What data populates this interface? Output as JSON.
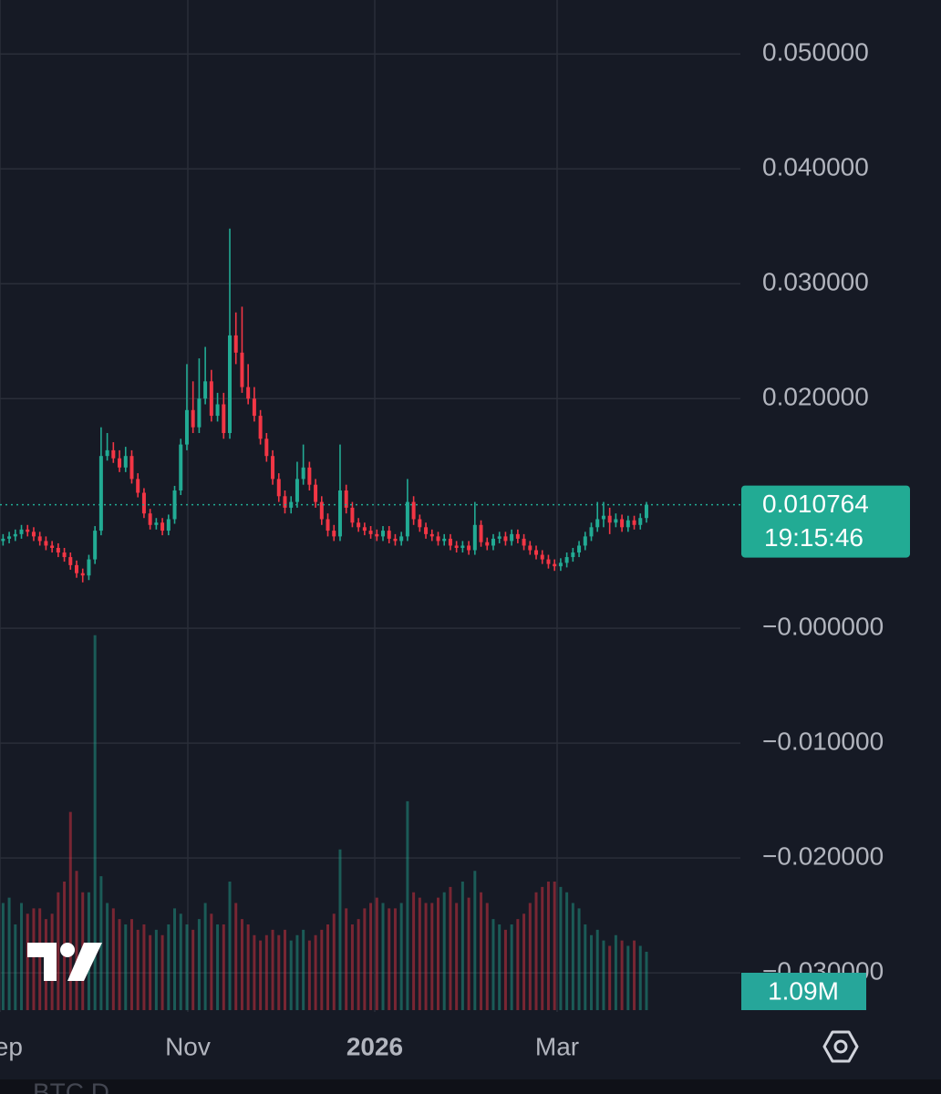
{
  "chart_data": {
    "type": "candlestick",
    "categories": [
      null,
      null,
      null,
      null,
      null,
      null,
      null,
      null,
      null,
      null,
      null,
      null,
      null,
      null,
      null,
      null,
      null,
      null,
      null,
      null,
      null,
      null,
      null,
      null,
      null,
      null,
      null,
      null,
      null,
      null,
      null,
      null,
      null,
      null,
      null,
      null,
      null,
      null,
      null,
      null,
      null,
      null,
      null,
      null,
      null,
      null,
      null,
      null,
      null,
      null,
      null,
      null,
      null,
      null,
      null,
      null,
      null,
      null,
      null,
      null,
      null,
      null,
      null,
      null,
      null,
      null,
      null,
      null,
      null,
      null,
      null,
      null,
      null,
      null,
      null,
      null,
      null,
      null,
      null,
      null,
      null,
      null,
      null,
      null,
      null,
      null,
      null,
      null,
      null,
      null,
      null,
      null,
      null,
      null,
      null,
      null,
      null,
      null,
      null,
      null,
      null,
      null,
      null,
      null,
      null,
      null
    ],
    "open": [
      0.0076,
      0.0078,
      0.008,
      0.0082,
      0.0086,
      0.0084,
      0.008,
      0.0076,
      0.0072,
      0.007,
      0.0066,
      0.0062,
      0.0055,
      0.0048,
      0.0046,
      0.006,
      0.0085,
      0.015,
      0.0155,
      0.0148,
      0.014,
      0.015,
      0.013,
      0.0118,
      0.01,
      0.009,
      0.0092,
      0.0085,
      0.0095,
      0.012,
      0.016,
      0.019,
      0.0175,
      0.02,
      0.0215,
      0.0185,
      0.0195,
      0.017,
      0.0255,
      0.024,
      0.021,
      0.02,
      0.0185,
      0.0165,
      0.015,
      0.013,
      0.0115,
      0.0105,
      0.011,
      0.013,
      0.014,
      0.0125,
      0.011,
      0.0095,
      0.0085,
      0.008,
      0.012,
      0.0105,
      0.0092,
      0.0088,
      0.0085,
      0.0082,
      0.008,
      0.0085,
      0.0078,
      0.0076,
      0.008,
      0.011,
      0.0095,
      0.0088,
      0.0082,
      0.008,
      0.0076,
      0.0078,
      0.0072,
      0.007,
      0.0072,
      0.0068,
      0.009,
      0.0075,
      0.0072,
      0.0078,
      0.008,
      0.0076,
      0.0082,
      0.0078,
      0.0072,
      0.0068,
      0.0064,
      0.006,
      0.0056,
      0.0054,
      0.0057,
      0.0062,
      0.0066,
      0.0072,
      0.008,
      0.0088,
      0.0095,
      0.0098,
      0.0092,
      0.0095,
      0.0088,
      0.0094,
      0.009,
      0.0096
    ],
    "high": [
      0.0082,
      0.0084,
      0.0086,
      0.009,
      0.009,
      0.0088,
      0.0084,
      0.008,
      0.0076,
      0.0074,
      0.007,
      0.0066,
      0.0059,
      0.0052,
      0.0064,
      0.0089,
      0.0175,
      0.017,
      0.0162,
      0.0155,
      0.0158,
      0.0155,
      0.0135,
      0.0122,
      0.0104,
      0.0096,
      0.0096,
      0.0099,
      0.0124,
      0.0165,
      0.023,
      0.0215,
      0.0235,
      0.0245,
      0.0225,
      0.0205,
      0.0205,
      0.0348,
      0.0275,
      0.028,
      0.023,
      0.021,
      0.019,
      0.017,
      0.0155,
      0.0135,
      0.012,
      0.0115,
      0.0145,
      0.016,
      0.0145,
      0.013,
      0.0115,
      0.01,
      0.009,
      0.016,
      0.0125,
      0.011,
      0.0096,
      0.0092,
      0.0089,
      0.0086,
      0.0089,
      0.0089,
      0.0082,
      0.0084,
      0.013,
      0.0115,
      0.0099,
      0.0092,
      0.0086,
      0.0084,
      0.0082,
      0.0082,
      0.0076,
      0.0076,
      0.0076,
      0.011,
      0.0094,
      0.0079,
      0.0082,
      0.0084,
      0.0084,
      0.0086,
      0.0086,
      0.0082,
      0.0076,
      0.0072,
      0.0068,
      0.0064,
      0.006,
      0.0061,
      0.0066,
      0.007,
      0.0076,
      0.0084,
      0.0092,
      0.011,
      0.011,
      0.0105,
      0.01,
      0.0099,
      0.0098,
      0.0098,
      0.01,
      0.011
    ],
    "low": [
      0.0072,
      0.0074,
      0.0076,
      0.0078,
      0.008,
      0.0076,
      0.0072,
      0.0068,
      0.0066,
      0.0062,
      0.0058,
      0.0051,
      0.0044,
      0.004,
      0.0042,
      0.0056,
      0.0081,
      0.0146,
      0.0144,
      0.0136,
      0.0136,
      0.0126,
      0.0114,
      0.0096,
      0.0086,
      0.0086,
      0.0081,
      0.0081,
      0.0091,
      0.0116,
      0.0155,
      0.017,
      0.017,
      0.0195,
      0.018,
      0.018,
      0.0165,
      0.0165,
      0.023,
      0.0205,
      0.0195,
      0.018,
      0.016,
      0.0145,
      0.0125,
      0.011,
      0.01,
      0.01,
      0.0105,
      0.0125,
      0.012,
      0.0105,
      0.009,
      0.008,
      0.0076,
      0.0076,
      0.01,
      0.0088,
      0.0084,
      0.0081,
      0.0078,
      0.0076,
      0.0076,
      0.0074,
      0.0072,
      0.0072,
      0.0076,
      0.009,
      0.0084,
      0.0078,
      0.0076,
      0.0072,
      0.0072,
      0.0068,
      0.0066,
      0.0066,
      0.0064,
      0.0064,
      0.0071,
      0.0068,
      0.0068,
      0.0074,
      0.0072,
      0.0072,
      0.0074,
      0.0068,
      0.0064,
      0.006,
      0.0056,
      0.0052,
      0.005,
      0.005,
      0.0053,
      0.0058,
      0.0062,
      0.0068,
      0.0076,
      0.0084,
      0.0088,
      0.0082,
      0.0088,
      0.0084,
      0.0084,
      0.0086,
      0.0086,
      0.0092
    ],
    "close": [
      0.0078,
      0.008,
      0.0082,
      0.0086,
      0.0084,
      0.008,
      0.0076,
      0.0072,
      0.007,
      0.0066,
      0.0062,
      0.0055,
      0.0048,
      0.0046,
      0.006,
      0.0085,
      0.015,
      0.0155,
      0.0148,
      0.014,
      0.015,
      0.013,
      0.0118,
      0.01,
      0.009,
      0.0092,
      0.0085,
      0.0095,
      0.012,
      0.016,
      0.019,
      0.0175,
      0.02,
      0.0215,
      0.0185,
      0.0195,
      0.017,
      0.0255,
      0.024,
      0.021,
      0.02,
      0.0185,
      0.0165,
      0.015,
      0.013,
      0.0115,
      0.0105,
      0.011,
      0.013,
      0.014,
      0.0125,
      0.011,
      0.0095,
      0.0085,
      0.008,
      0.012,
      0.0105,
      0.0092,
      0.0088,
      0.0085,
      0.0082,
      0.008,
      0.0085,
      0.0078,
      0.0076,
      0.008,
      0.011,
      0.0095,
      0.0088,
      0.0082,
      0.008,
      0.0076,
      0.0078,
      0.0072,
      0.007,
      0.0072,
      0.0068,
      0.009,
      0.0075,
      0.0072,
      0.0078,
      0.008,
      0.0076,
      0.0082,
      0.0078,
      0.0072,
      0.0068,
      0.0064,
      0.006,
      0.0056,
      0.0054,
      0.0057,
      0.0062,
      0.0066,
      0.0072,
      0.008,
      0.0088,
      0.0095,
      0.0098,
      0.0092,
      0.0095,
      0.0088,
      0.0094,
      0.009,
      0.0096,
      0.010764
    ],
    "volume": [
      2.0,
      2.1,
      1.6,
      2.0,
      1.8,
      1.9,
      1.9,
      1.7,
      1.8,
      2.2,
      2.4,
      3.7,
      2.6,
      2.2,
      2.2,
      7.0,
      2.5,
      2.0,
      1.9,
      1.7,
      1.6,
      1.7,
      1.5,
      1.6,
      1.4,
      1.5,
      1.4,
      1.6,
      1.9,
      1.8,
      1.6,
      1.5,
      1.7,
      2.0,
      1.8,
      1.6,
      1.6,
      2.4,
      2.0,
      1.7,
      1.6,
      1.4,
      1.3,
      1.4,
      1.5,
      1.4,
      1.5,
      1.3,
      1.4,
      1.5,
      1.3,
      1.4,
      1.5,
      1.6,
      1.8,
      3.0,
      1.9,
      1.6,
      1.7,
      1.9,
      2.0,
      2.1,
      2.0,
      1.9,
      1.9,
      2.0,
      3.9,
      2.2,
      2.1,
      2.0,
      2.0,
      2.1,
      2.2,
      2.3,
      2.0,
      2.4,
      2.1,
      2.6,
      2.2,
      2.0,
      1.7,
      1.6,
      1.5,
      1.6,
      1.7,
      1.8,
      2.0,
      2.2,
      2.3,
      2.4,
      2.4,
      2.3,
      2.2,
      2.0,
      1.9,
      1.6,
      1.4,
      1.5,
      1.3,
      1.2,
      1.4,
      1.3,
      1.2,
      1.3,
      1.2,
      1.09
    ],
    "volume_label": "1.09M",
    "volume_ylim": [
      0,
      8
    ],
    "countdown": "19:15:46",
    "symbol": "BTC.D",
    "up_color": "#22ab94",
    "down_color": "#f23645",
    "xlim": [
      -0.5,
      120.33
    ],
    "xticks": [
      {
        "value": -0.5,
        "label": "Sep"
      },
      {
        "value": 30.15,
        "label": "Nov"
      },
      {
        "value": 60.66,
        "label": "2026"
      },
      {
        "value": 90.42,
        "label": "Mar"
      }
    ],
    "ylim": [
      -0.0334,
      0.0547
    ],
    "yticks": [
      {
        "value": 0.05,
        "label": "0.050000"
      },
      {
        "value": 0.04,
        "label": "0.040000"
      },
      {
        "value": 0.03,
        "label": "0.030000"
      },
      {
        "value": 0.02,
        "label": "0.020000"
      },
      {
        "value": 0,
        "label": "−0.000000"
      },
      {
        "value": -0.01,
        "label": "−0.010000"
      },
      {
        "value": -0.02,
        "label": "−0.020000"
      },
      {
        "value": -0.03,
        "label": "−0.030000"
      }
    ],
    "grid": true
  }
}
